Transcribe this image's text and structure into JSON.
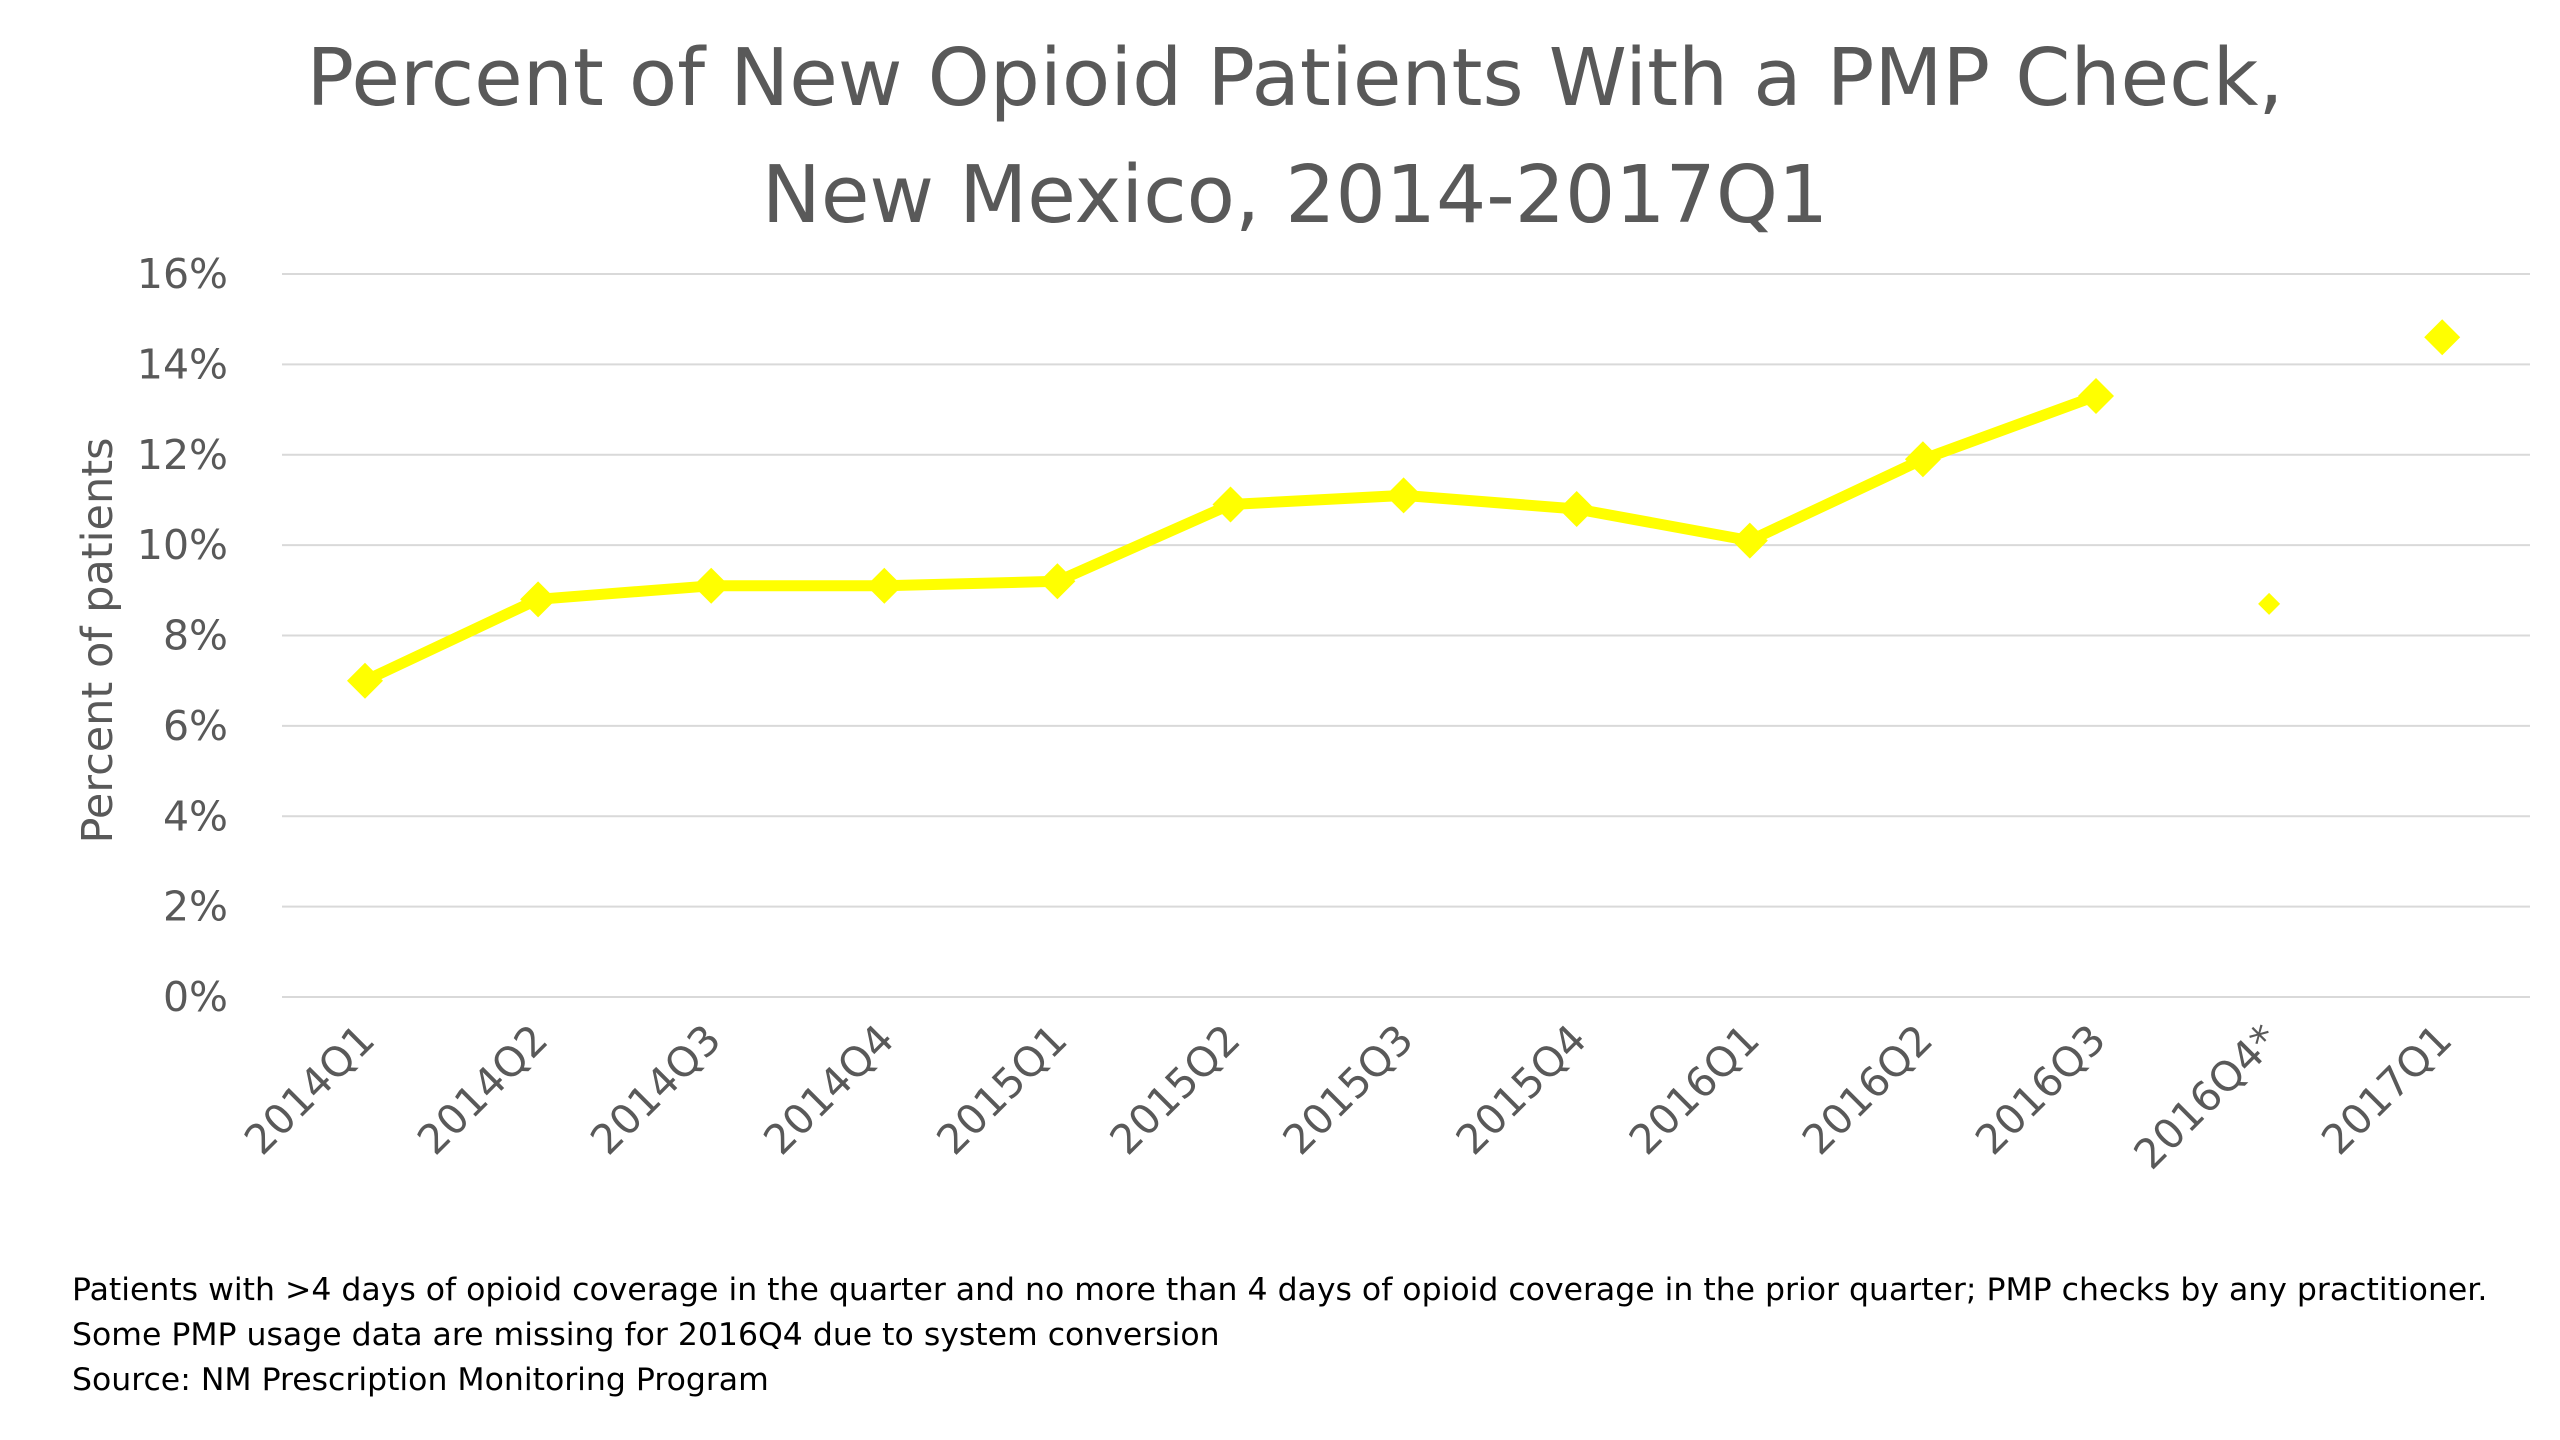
{
  "chart_data": {
    "type": "line",
    "title": "Percent of New Opioid Patients With a PMP Check, New Mexico, 2014-2017Q1",
    "title_lines": [
      "Percent of New Opioid Patients With a PMP Check,",
      "New Mexico, 2014-2017Q1"
    ],
    "ylabel": "Percent of patients",
    "xlabel": "",
    "ylim": [
      0,
      16
    ],
    "yticks": [
      0,
      2,
      4,
      6,
      8,
      10,
      12,
      14,
      16
    ],
    "ytick_labels": [
      "0%",
      "2%",
      "4%",
      "6%",
      "8%",
      "10%",
      "12%",
      "14%",
      "16%"
    ],
    "grid": true,
    "legend": "none",
    "categories": [
      "2014Q1",
      "2014Q2",
      "2014Q3",
      "2014Q4",
      "2015Q1",
      "2015Q2",
      "2015Q3",
      "2015Q4",
      "2016Q1",
      "2016Q2",
      "2016Q3",
      "2016Q4*",
      "2017Q1"
    ],
    "series": [
      {
        "color": "#ffff00",
        "marker": "diamond",
        "values": [
          7.0,
          8.8,
          9.1,
          9.1,
          9.2,
          10.9,
          11.1,
          10.8,
          10.1,
          11.9,
          13.3,
          8.7,
          14.6
        ],
        "line_breaks_before": [
          "2016Q4*",
          "2017Q1"
        ],
        "small_marker_categories": [
          "2016Q4*"
        ]
      }
    ]
  },
  "footnotes": [
    "Patients with >4 days of opioid coverage in the quarter and no more than 4 days of opioid coverage in the prior quarter; PMP checks by any practitioner.",
    "Some PMP usage data are missing for 2016Q4 due to system conversion",
    "Source: NM Prescription Monitoring Program"
  ]
}
